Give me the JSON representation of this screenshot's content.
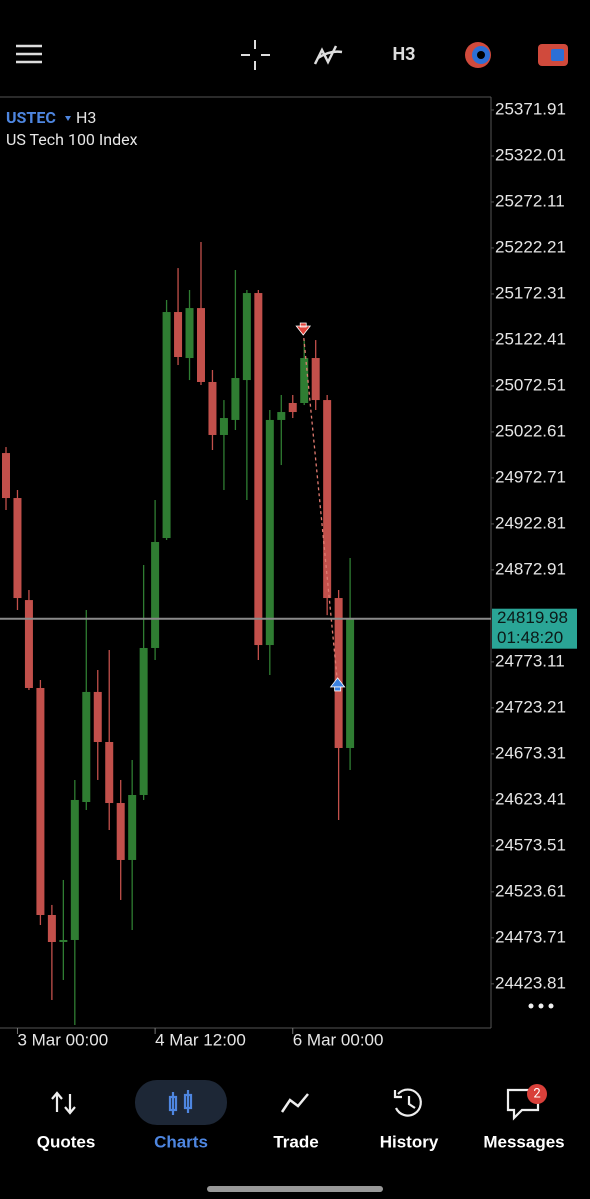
{
  "header": {
    "timeframe": "H3"
  },
  "chart_data": {
    "type": "candlestick",
    "symbol": "USTEC",
    "timeframe": "H3",
    "title": "US Tech 100 Index",
    "categories": [
      null,
      "3 Mar 00:00",
      null,
      null,
      null,
      null,
      null,
      null,
      null,
      null,
      null,
      null,
      null,
      "4 Mar 12:00",
      null,
      null,
      null,
      null,
      null,
      null,
      null,
      null,
      null,
      null,
      null,
      "6 Mar 00:00",
      null,
      null,
      null,
      null,
      null
    ],
    "open": [
      24999.7,
      24950.9,
      24840.2,
      24744.8,
      24498.5,
      24469.2,
      24471.4,
      24621.1,
      24740.5,
      24686.2,
      24620.0,
      24558.2,
      24628.7,
      24788.2,
      24907.5,
      25152.7,
      25102.8,
      25157.0,
      25076.8,
      25019.3,
      25035.6,
      25078.9,
      25173.3,
      24791.4,
      25035.6,
      25054.0,
      25054.0,
      25102.8,
      25057.2,
      24842.4,
      24679.7
    ],
    "high": [
      25006.2,
      24959.6,
      24851.1,
      24753.5,
      24509.4,
      24536.5,
      24645.0,
      24829.4,
      24764.3,
      24786.0,
      24645.0,
      24666.7,
      24878.2,
      24948.7,
      25165.7,
      25200.4,
      25176.6,
      25228.7,
      25089.8,
      25057.2,
      25198.3,
      25176.6,
      25176.6,
      25046.4,
      25062.7,
      25062.7,
      25122.3,
      25122.3,
      25062.7,
      24851.1,
      24885.8
    ],
    "low": [
      24937.9,
      24829.4,
      24742.6,
      24487.7,
      24406.3,
      24428.0,
      24379.1,
      24612.4,
      24645.0,
      24590.7,
      24514.8,
      24482.2,
      24623.3,
      24775.2,
      24905.3,
      25095.2,
      25078.9,
      25073.5,
      25003.0,
      24959.6,
      25024.7,
      24948.7,
      24775.2,
      24758.9,
      24986.7,
      25037.7,
      25051.8,
      25046.4,
      24823.9,
      24601.6,
      24655.8
    ],
    "close": [
      24950.9,
      24842.4,
      24744.8,
      24498.5,
      24469.2,
      24471.4,
      24623.3,
      24740.5,
      24686.2,
      24620.0,
      24558.2,
      24628.7,
      24788.2,
      24903.2,
      25152.7,
      25103.9,
      25157.0,
      25076.8,
      25019.3,
      25037.7,
      25081.1,
      25173.3,
      24791.4,
      25035.6,
      25044.2,
      25044.2,
      25102.8,
      25057.2,
      24842.4,
      24679.7,
      24819.98
    ],
    "up_color": "#2f7d32",
    "down_color": "#c2504b",
    "ylim": [
      24375.9,
      25386.0
    ],
    "yticks": [
      25371.91,
      25322.01,
      25272.11,
      25222.21,
      25172.31,
      25122.41,
      25072.51,
      25022.61,
      24972.71,
      24922.81,
      24872.91,
      24773.11,
      24723.21,
      24673.31,
      24623.41,
      24573.51,
      24523.61,
      24473.71,
      24423.81
    ],
    "current_price": 24819.98,
    "countdown": "01:48:20",
    "trade_prices": [
      25131.0,
      24749.2
    ]
  },
  "nav": {
    "items": [
      "Quotes",
      "Charts",
      "Trade",
      "History",
      "Messages"
    ],
    "active": 1,
    "badge": 2
  }
}
